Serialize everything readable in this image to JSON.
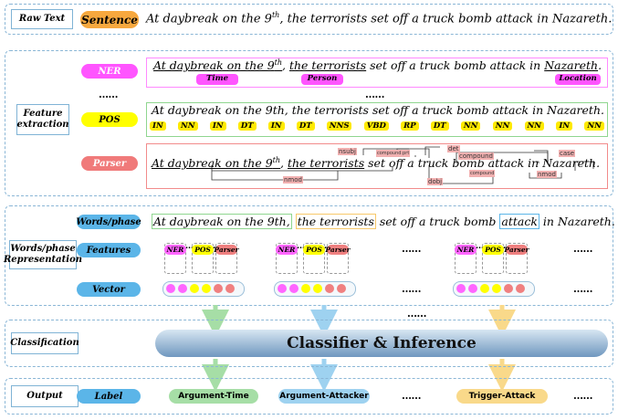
{
  "raw": {
    "label": "Raw Text",
    "pill": "Sentence",
    "sentence": "At daybreak on the 9th, the terrorists set off a truck bomb attack in Nazareth."
  },
  "feat": {
    "label_line1": "Feature",
    "label_line2": "extraction",
    "ner": {
      "pill": "NER",
      "sentence": "At daybreak on the 9th, the terrorists set off a truck bomb attack in Nazareth.",
      "tags": [
        "Time",
        "Person",
        "Location"
      ]
    },
    "dots_left": "……",
    "dots_mid": "……",
    "pos": {
      "pill": "POS",
      "words": [
        "At",
        "daybreak",
        "on",
        "the",
        "9th,",
        "the",
        "terrorists",
        "set",
        "off",
        "a",
        "truck",
        "bomb",
        "attack",
        "in",
        "Nazareth."
      ],
      "tags": [
        "IN",
        "NN",
        "IN",
        "DT",
        "IN",
        "DT",
        "NNS",
        "VBD",
        "RP",
        "DT",
        "NN",
        "NN",
        "NN",
        "IN",
        "NN"
      ]
    },
    "parser": {
      "pill": "Parser",
      "sentence": "At daybreak on the 9th, the terrorists set off a truck bomb attack in Nazareth.",
      "labels": [
        "nsubj",
        "compound:prt",
        "det",
        "compound",
        "case",
        "compound",
        "nmod",
        "dobj",
        "nmod"
      ]
    }
  },
  "rep": {
    "label_line1": "Words/phase",
    "label_line2": "Representation",
    "words_pill": "Words/phase",
    "sentence_parts": [
      "At daybreak on the 9th,",
      "the terrorists",
      "set off a truck bomb",
      "attack",
      "in Nazareth."
    ],
    "features_pill": "Features",
    "vector_pill": "Vector",
    "feature_names": [
      "NER",
      "POS",
      "Parser"
    ],
    "ell": "……",
    "dots3": "…"
  },
  "cls": {
    "label": "Classification",
    "bar": "Classifier & Inference"
  },
  "out": {
    "label": "Output",
    "pill": "Label",
    "labels": [
      "Argument-Time",
      "Argument-Attacker",
      "Trigger-Attack"
    ],
    "ell": "……"
  },
  "colors": {
    "ner": "#ff66ff",
    "pos": "#ffff00",
    "parser": "#f08080",
    "blue": "#5bb5e8",
    "green": "#8fd68f",
    "orange": "#f7c86a"
  }
}
